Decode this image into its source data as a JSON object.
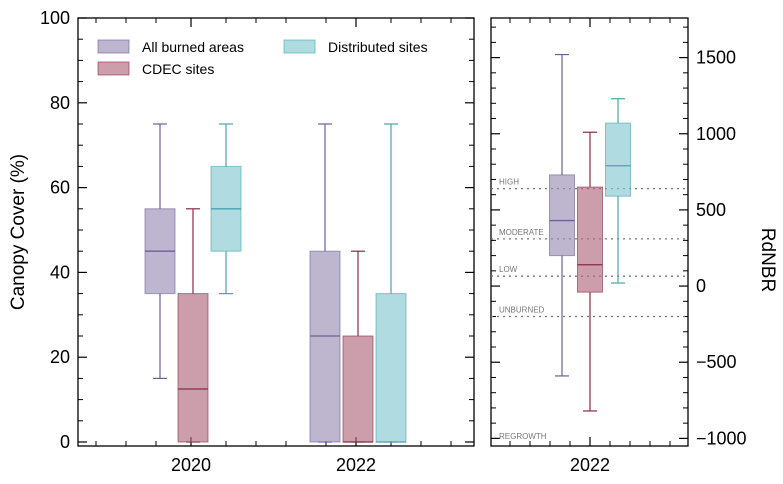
{
  "chart_data": [
    {
      "type": "box",
      "ylabel": "Canopy Cover (%)",
      "ylim": [
        0,
        100
      ],
      "yticks": [
        0,
        20,
        40,
        60,
        80,
        100
      ],
      "categories": [
        "2020",
        "2022"
      ],
      "legend": {
        "placement": "top",
        "columns": 2
      },
      "series": [
        {
          "name": "All burned areas",
          "color": "#9b8fb5",
          "line_color": "#6e5f99",
          "boxes": [
            {
              "category": "2020",
              "whisker_low": 15,
              "q1": 35,
              "median": 45,
              "q3": 55,
              "whisker_high": 75
            },
            {
              "category": "2022",
              "whisker_low": 0,
              "q1": 0,
              "median": 25,
              "q3": 45,
              "whisker_high": 75
            }
          ]
        },
        {
          "name": "CDEC sites",
          "color": "#b06a80",
          "line_color": "#8a2a45",
          "boxes": [
            {
              "category": "2020",
              "whisker_low": 0,
              "q1": 0,
              "median": 12.5,
              "q3": 35,
              "whisker_high": 55
            },
            {
              "category": "2022",
              "whisker_low": 0,
              "q1": 0,
              "median": 0,
              "q3": 25,
              "whisker_high": 45
            }
          ]
        },
        {
          "name": "Distributed sites",
          "color": "#86c9d1",
          "line_color": "#4aa3b1",
          "boxes": [
            {
              "category": "2020",
              "whisker_low": 35,
              "q1": 45,
              "median": 55,
              "q3": 65,
              "whisker_high": 75
            },
            {
              "category": "2022",
              "whisker_low": 0,
              "q1": 0,
              "median": 0,
              "q3": 35,
              "whisker_high": 75
            }
          ]
        }
      ]
    },
    {
      "type": "box",
      "ylabel": "RdNBR",
      "ylim": [
        -1050,
        1760
      ],
      "yticks": [
        -1000,
        -500,
        0,
        500,
        1000,
        1500
      ],
      "ytick_labels": [
        "−1000",
        "−500",
        "0",
        "500",
        "1000",
        "1500"
      ],
      "categories": [
        "2022"
      ],
      "series": [
        {
          "name": "All burned areas",
          "color": "#9b8fb5",
          "line_color": "#6e5f99",
          "boxes": [
            {
              "category": "2022",
              "whisker_low": -590,
              "q1": 200,
              "median": 430,
              "q3": 730,
              "whisker_high": 1520
            }
          ]
        },
        {
          "name": "CDEC sites",
          "color": "#b06a80",
          "line_color": "#8a2a45",
          "boxes": [
            {
              "category": "2022",
              "whisker_low": -820,
              "q1": -40,
              "median": 140,
              "q3": 650,
              "whisker_high": 1010
            }
          ]
        },
        {
          "name": "Distributed sites",
          "color": "#86c9d1",
          "line_color": "#4aa3b1",
          "boxes": [
            {
              "category": "2022",
              "whisker_low": 20,
              "q1": 590,
              "median": 790,
              "q3": 1070,
              "whisker_high": 1230
            }
          ]
        }
      ],
      "thresholds": [
        {
          "label": "HIGH",
          "value": 640
        },
        {
          "label": "MODERATE",
          "value": 310
        },
        {
          "label": "LOW",
          "value": 65
        },
        {
          "label": "UNBURNED",
          "value": -200
        },
        {
          "label": "REGROWTH",
          "value": null
        }
      ]
    }
  ]
}
